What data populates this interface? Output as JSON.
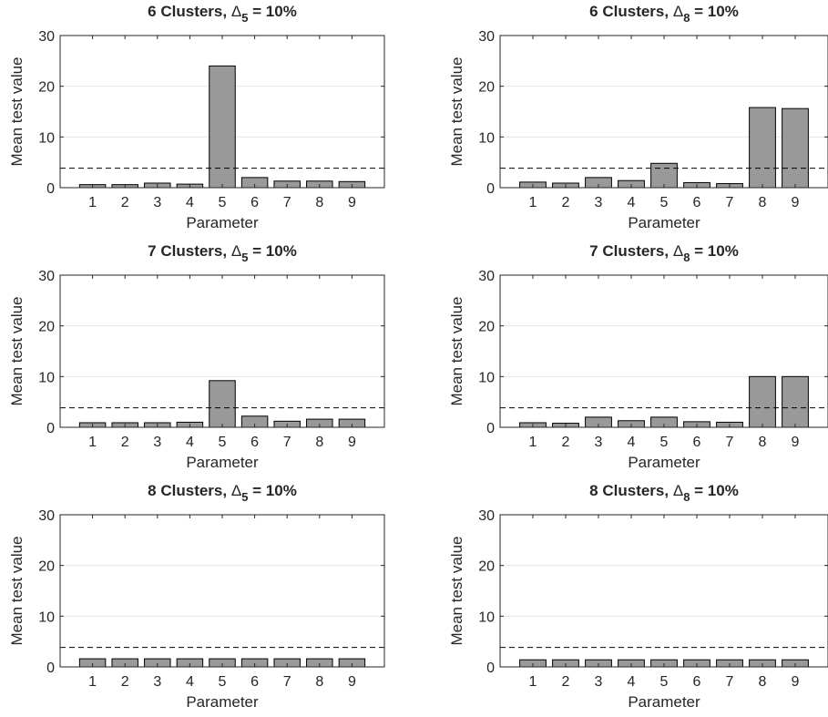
{
  "chart_data": [
    {
      "type": "bar",
      "title": {
        "prefix": "6 Clusters, ",
        "symbol": "Δ",
        "subscript": "5",
        "suffix": " = 10%"
      },
      "xlabel": "Parameter",
      "ylabel": "Mean test value",
      "categories": [
        "1",
        "2",
        "3",
        "4",
        "5",
        "6",
        "7",
        "8",
        "9"
      ],
      "values": [
        0.6,
        0.6,
        0.9,
        0.7,
        24.0,
        2.0,
        1.3,
        1.3,
        1.2
      ],
      "ylim": [
        0,
        30
      ],
      "yticks": [
        0,
        10,
        20,
        30
      ],
      "threshold": 3.84,
      "grid": "y"
    },
    {
      "type": "bar",
      "title": {
        "prefix": "6 Clusters, ",
        "symbol": "Δ",
        "subscript": "8",
        "suffix": " = 10%"
      },
      "xlabel": "Parameter",
      "ylabel": "Mean test value",
      "categories": [
        "1",
        "2",
        "3",
        "4",
        "5",
        "6",
        "7",
        "8",
        "9"
      ],
      "values": [
        1.1,
        0.9,
        2.0,
        1.4,
        4.8,
        1.0,
        0.8,
        15.8,
        15.6
      ],
      "ylim": [
        0,
        30
      ],
      "yticks": [
        0,
        10,
        20,
        30
      ],
      "threshold": 3.84,
      "grid": "y"
    },
    {
      "type": "bar",
      "title": {
        "prefix": "7 Clusters, ",
        "symbol": "Δ",
        "subscript": "5",
        "suffix": " = 10%"
      },
      "xlabel": "Parameter",
      "ylabel": "Mean test value",
      "categories": [
        "1",
        "2",
        "3",
        "4",
        "5",
        "6",
        "7",
        "8",
        "9"
      ],
      "values": [
        0.9,
        0.9,
        0.9,
        1.0,
        9.2,
        2.2,
        1.2,
        1.6,
        1.6
      ],
      "ylim": [
        0,
        30
      ],
      "yticks": [
        0,
        10,
        20,
        30
      ],
      "threshold": 3.84,
      "grid": "y"
    },
    {
      "type": "bar",
      "title": {
        "prefix": "7 Clusters, ",
        "symbol": "Δ",
        "subscript": "8",
        "suffix": " = 10%"
      },
      "xlabel": "Parameter",
      "ylabel": "Mean test value",
      "categories": [
        "1",
        "2",
        "3",
        "4",
        "5",
        "6",
        "7",
        "8",
        "9"
      ],
      "values": [
        0.9,
        0.8,
        2.0,
        1.3,
        2.0,
        1.1,
        1.0,
        10.0,
        10.0
      ],
      "ylim": [
        0,
        30
      ],
      "yticks": [
        0,
        10,
        20,
        30
      ],
      "threshold": 3.84,
      "grid": "y"
    },
    {
      "type": "bar",
      "title": {
        "prefix": "8 Clusters, ",
        "symbol": "Δ",
        "subscript": "5",
        "suffix": " = 10%"
      },
      "xlabel": "Parameter",
      "ylabel": "Mean test value",
      "categories": [
        "1",
        "2",
        "3",
        "4",
        "5",
        "6",
        "7",
        "8",
        "9"
      ],
      "values": [
        1.6,
        1.6,
        1.6,
        1.6,
        1.6,
        1.6,
        1.6,
        1.6,
        1.6
      ],
      "ylim": [
        0,
        30
      ],
      "yticks": [
        0,
        10,
        20,
        30
      ],
      "threshold": 3.84,
      "grid": "y"
    },
    {
      "type": "bar",
      "title": {
        "prefix": "8 Clusters, ",
        "symbol": "Δ",
        "subscript": "8",
        "suffix": " = 10%"
      },
      "xlabel": "Parameter",
      "ylabel": "Mean test value",
      "categories": [
        "1",
        "2",
        "3",
        "4",
        "5",
        "6",
        "7",
        "8",
        "9"
      ],
      "values": [
        1.4,
        1.4,
        1.4,
        1.4,
        1.4,
        1.4,
        1.4,
        1.4,
        1.4
      ],
      "ylim": [
        0,
        30
      ],
      "yticks": [
        0,
        10,
        20,
        30
      ],
      "threshold": 3.84,
      "grid": "y"
    }
  ],
  "colors": {
    "bar_fill": "#999999",
    "bar_edge": "#000000",
    "axis": "#262626",
    "grid": "#e6e6e6",
    "threshold_line": "#000000"
  }
}
